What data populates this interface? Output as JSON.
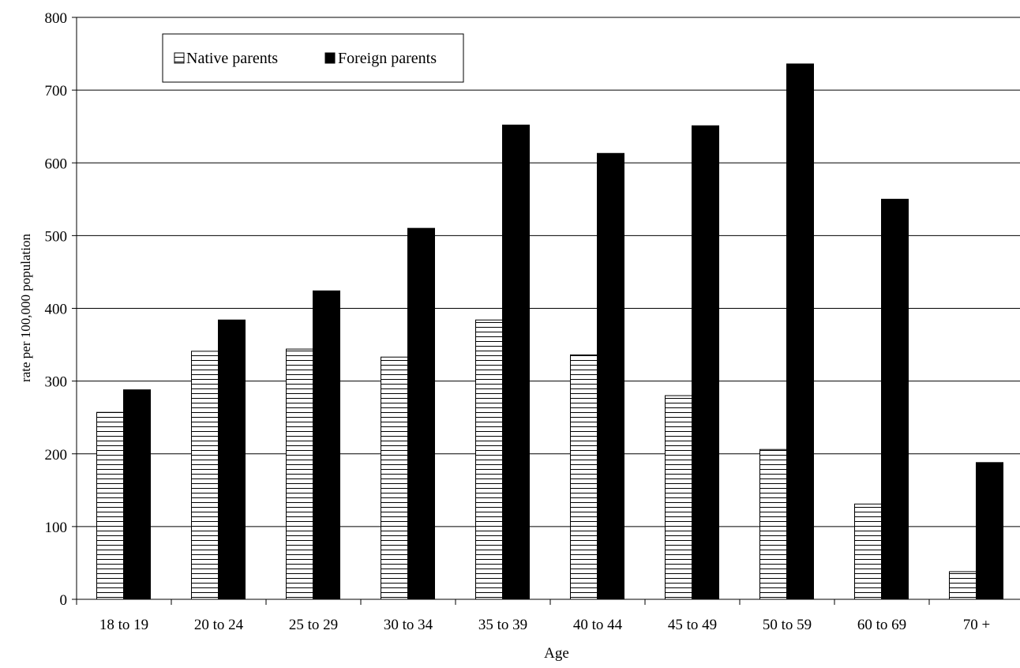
{
  "chart_data": {
    "type": "bar",
    "title": "",
    "xlabel": "Age",
    "ylabel": "rate per 100,000 population",
    "ylim": [
      0,
      800
    ],
    "yticks": [
      0,
      100,
      200,
      300,
      400,
      500,
      600,
      700,
      800
    ],
    "grid": true,
    "legend_position": "top-left",
    "categories": [
      "18 to 19",
      "20 to 24",
      "25 to 29",
      "30 to 34",
      "35 to 39",
      "40 to 44",
      "45 to 49",
      "50 to 59",
      "60 to 69",
      "70 +"
    ],
    "series": [
      {
        "name": "Native parents",
        "pattern": "horizontal-stripes",
        "color": "#ffffff",
        "values": [
          257,
          341,
          344,
          333,
          384,
          336,
          280,
          206,
          131,
          38
        ]
      },
      {
        "name": "Foreign parents",
        "pattern": "solid",
        "color": "#000000",
        "values": [
          288,
          384,
          424,
          510,
          652,
          613,
          651,
          736,
          550,
          188
        ]
      }
    ]
  }
}
